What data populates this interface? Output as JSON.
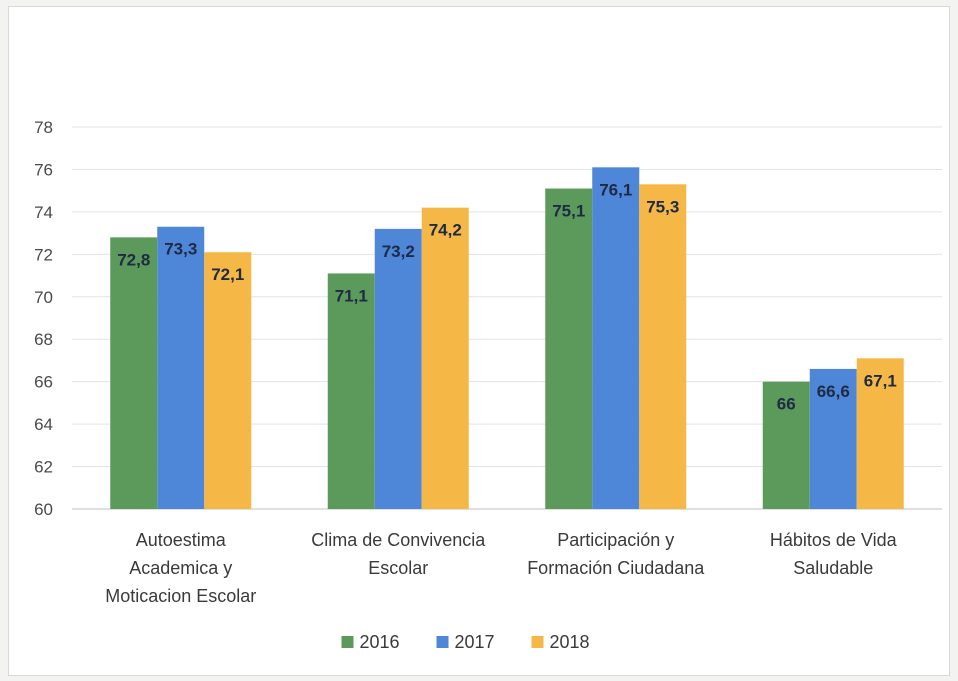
{
  "chart_data": {
    "type": "bar",
    "title": "",
    "xlabel": "",
    "ylabel": "",
    "ylim": [
      60,
      78
    ],
    "yticks": [
      60,
      62,
      64,
      66,
      68,
      70,
      72,
      74,
      76,
      78
    ],
    "grid": true,
    "legend_position": "bottom",
    "categories": [
      [
        "Autoestima",
        "Academica y",
        "Moticacion Escolar"
      ],
      [
        "Clima de Convivencia",
        "Escolar"
      ],
      [
        "Participación y",
        "Formación Ciudadana"
      ],
      [
        "Hábitos de Vida",
        "Saludable"
      ]
    ],
    "series": [
      {
        "name": "2016",
        "color": "#5b9a5a",
        "values": [
          72.8,
          71.1,
          75.1,
          66
        ],
        "labels": [
          "72,8",
          "71,1",
          "75,1",
          "66"
        ]
      },
      {
        "name": "2017",
        "color": "#4e86d8",
        "values": [
          73.3,
          73.2,
          76.1,
          66.6
        ],
        "labels": [
          "73,3",
          "73,2",
          "76,1",
          "66,6"
        ]
      },
      {
        "name": "2018",
        "color": "#f5b846",
        "values": [
          72.1,
          74.2,
          75.3,
          67.1
        ],
        "labels": [
          "72,1",
          "74,2",
          "75,3",
          "67,1"
        ]
      }
    ]
  }
}
